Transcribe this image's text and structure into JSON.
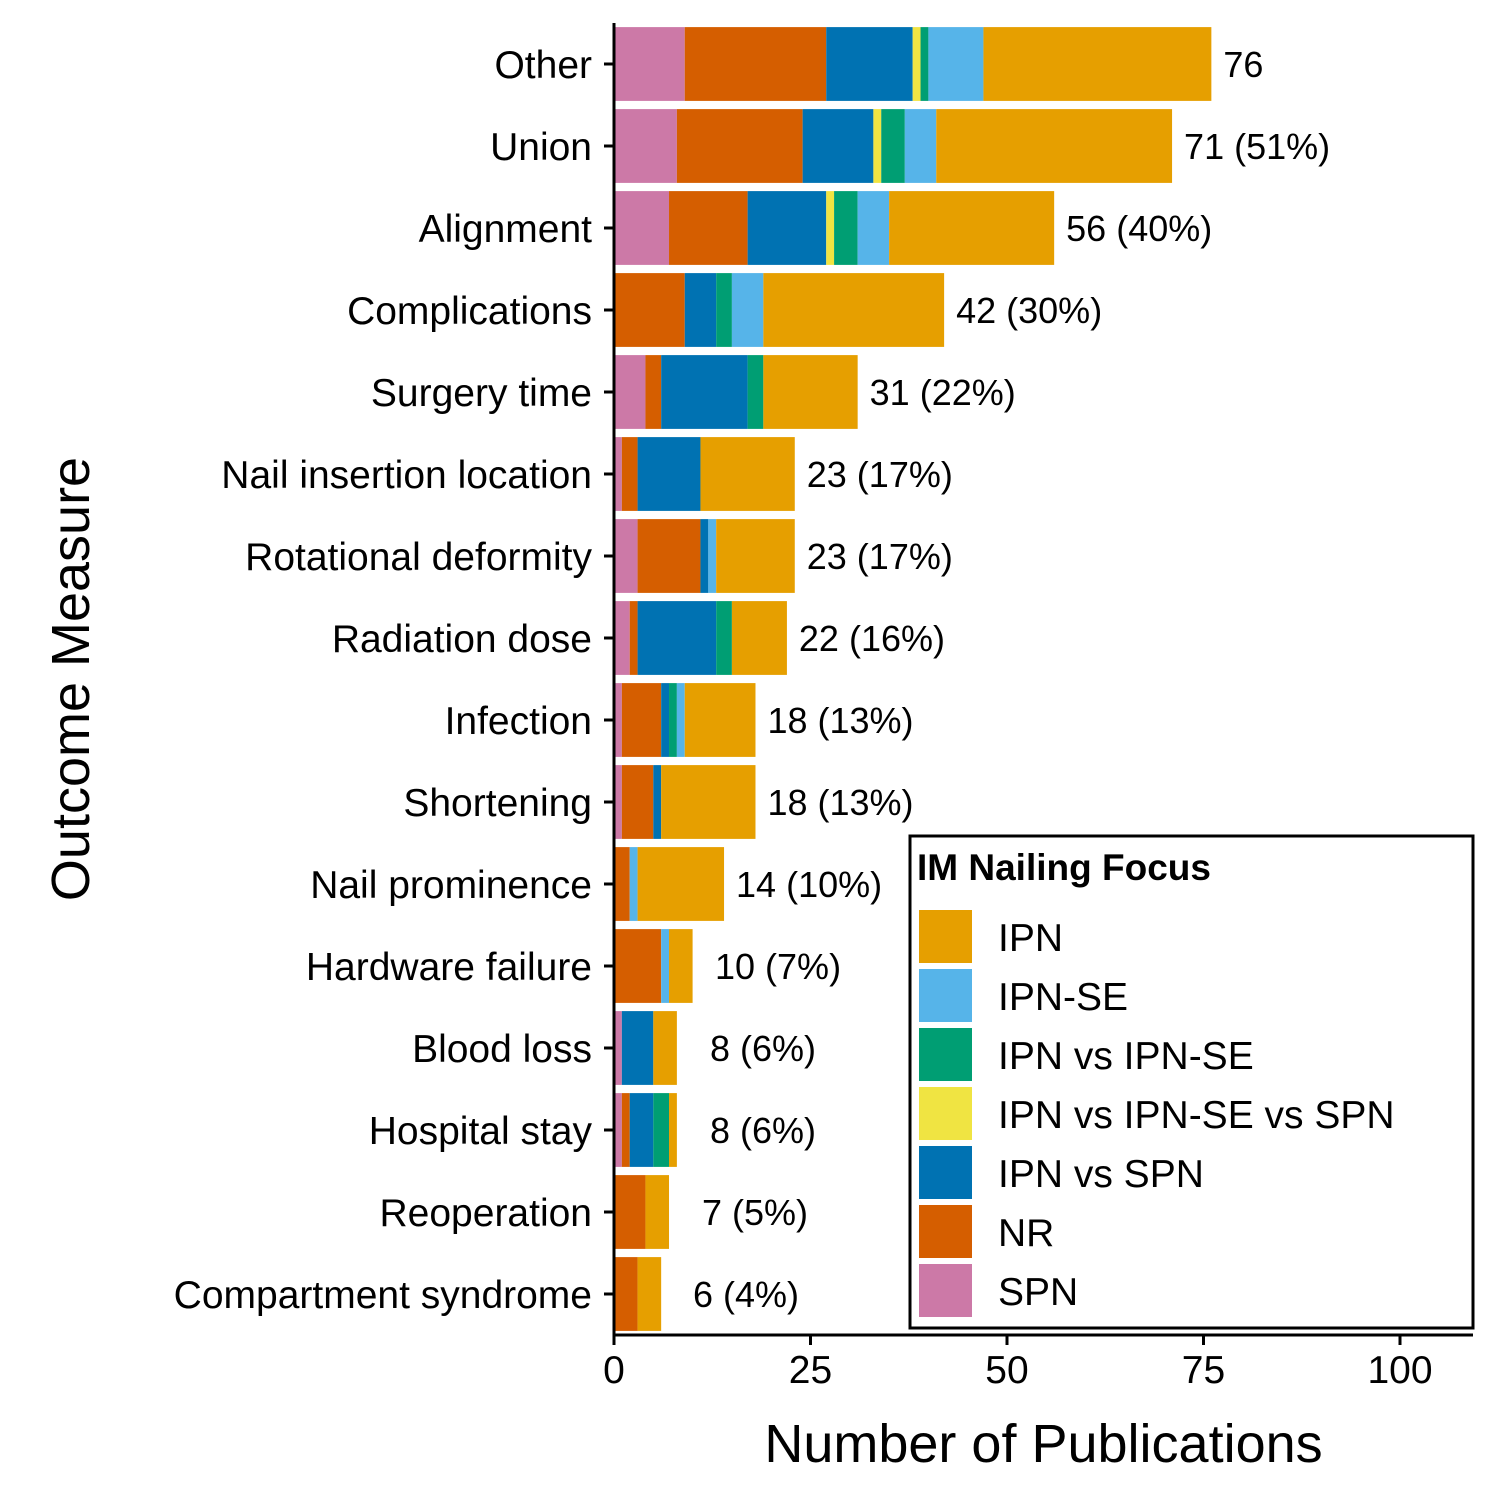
{
  "chart_data": {
    "type": "bar",
    "orientation": "horizontal",
    "stacked": true,
    "xlabel": "Number of Publications",
    "ylabel": "Outcome Measure",
    "xlim": [
      0,
      110
    ],
    "xticks": [
      0,
      25,
      50,
      75,
      100
    ],
    "categories": [
      "Other",
      "Union",
      "Alignment",
      "Complications",
      "Surgery time",
      "Nail insertion location",
      "Rotational deformity",
      "Radiation dose",
      "Infection",
      "Shortening",
      "Nail prominence",
      "Hardware failure",
      "Blood loss",
      "Hospital stay",
      "Reoperation",
      "Compartment syndrome"
    ],
    "totals": [
      76,
      71,
      56,
      42,
      31,
      23,
      23,
      22,
      18,
      18,
      14,
      10,
      8,
      8,
      7,
      6
    ],
    "bar_labels": [
      "76",
      "71 (51%)",
      "56 (40%)",
      "42 (30%)",
      "31 (22%)",
      "23 (17%)",
      "23 (17%)",
      "22 (16%)",
      "18 (13%)",
      "18 (13%)",
      "14 (10%)",
      "10 (7%)",
      "8 (6%)",
      "8 (6%)",
      "7 (5%)",
      "6 (4%)"
    ],
    "series": [
      {
        "name": "SPN",
        "color": "#CC79A7",
        "values": [
          9,
          8,
          7,
          0,
          4,
          1,
          3,
          2,
          1,
          1,
          0,
          0,
          1,
          1,
          0,
          0
        ]
      },
      {
        "name": "NR",
        "color": "#D55E00",
        "values": [
          18,
          16,
          10,
          9,
          2,
          2,
          8,
          1,
          5,
          4,
          2,
          6,
          0,
          1,
          4,
          3
        ]
      },
      {
        "name": "IPN vs SPN",
        "color": "#0072B2",
        "values": [
          11,
          9,
          10,
          4,
          11,
          8,
          1,
          10,
          1,
          1,
          0,
          0,
          4,
          3,
          0,
          0
        ]
      },
      {
        "name": "IPN vs IPN-SE vs SPN",
        "color": "#F0E442",
        "values": [
          1,
          1,
          1,
          0,
          0,
          0,
          0,
          0,
          0,
          0,
          0,
          0,
          0,
          0,
          0,
          0
        ]
      },
      {
        "name": "IPN vs IPN-SE",
        "color": "#009E73",
        "values": [
          1,
          3,
          3,
          2,
          2,
          0,
          0,
          2,
          1,
          0,
          0,
          0,
          0,
          2,
          0,
          0
        ]
      },
      {
        "name": "IPN-SE",
        "color": "#56B4E9",
        "values": [
          7,
          4,
          4,
          4,
          0,
          0,
          1,
          0,
          1,
          0,
          1,
          1,
          0,
          0,
          0,
          0
        ]
      },
      {
        "name": "IPN",
        "color": "#E69F00",
        "values": [
          29,
          30,
          21,
          23,
          12,
          12,
          10,
          7,
          9,
          12,
          11,
          3,
          3,
          1,
          3,
          3
        ]
      }
    ],
    "legend": {
      "title": "IM Nailing Focus",
      "position": "bottom-right",
      "order": [
        "IPN",
        "IPN-SE",
        "IPN vs IPN-SE",
        "IPN vs IPN-SE vs SPN",
        "IPN vs SPN",
        "NR",
        "SPN"
      ]
    },
    "grid": false
  }
}
